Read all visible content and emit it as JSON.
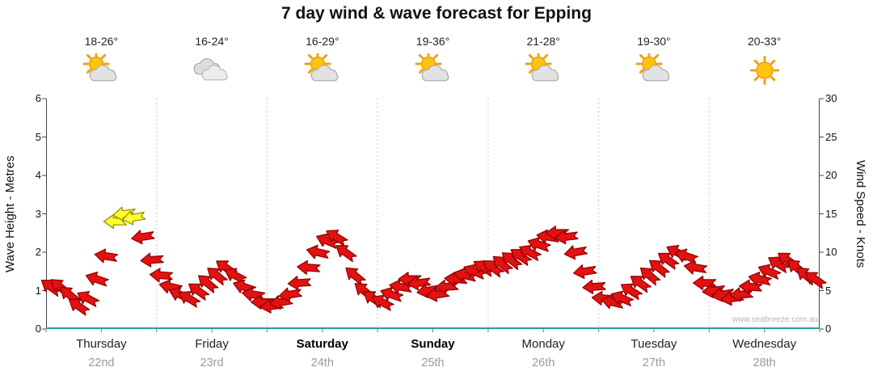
{
  "title": "7 day wind & wave forecast for Epping",
  "watermark": "www.seabreeze.com.au",
  "colors": {
    "arrow_red": "#e41111",
    "arrow_red_edge": "#8f0000",
    "arrow_yellow": "#ffff2e",
    "arrow_yellow_edge": "#8a8a00",
    "axis_teal": "#2e9a9a",
    "grid": "#cccccc",
    "axis_dark": "#444444"
  },
  "left_axis": {
    "label": "Wave Height - Metres",
    "ticks": [
      0,
      1,
      2,
      3,
      4,
      5,
      6
    ],
    "range": [
      0,
      6
    ]
  },
  "right_axis": {
    "label": "Wind Speed - Knots",
    "ticks": [
      0,
      5,
      10,
      15,
      20,
      25,
      30
    ],
    "range": [
      0,
      30
    ]
  },
  "days": [
    {
      "name": "Thursday",
      "date": "22nd",
      "temp": "18-26°",
      "icon": "sun-cloud",
      "bold": false
    },
    {
      "name": "Friday",
      "date": "23rd",
      "temp": "16-24°",
      "icon": "cloud",
      "bold": false
    },
    {
      "name": "Saturday",
      "date": "24th",
      "temp": "16-29°",
      "icon": "sun-cloud",
      "bold": true
    },
    {
      "name": "Sunday",
      "date": "25th",
      "temp": "19-36°",
      "icon": "sun-cloud",
      "bold": true
    },
    {
      "name": "Monday",
      "date": "26th",
      "temp": "21-28°",
      "icon": "sun-cloud",
      "bold": false
    },
    {
      "name": "Tuesday",
      "date": "27th",
      "temp": "19-30°",
      "icon": "sun-cloud",
      "bold": false
    },
    {
      "name": "Wednesday",
      "date": "28th",
      "temp": "20-33°",
      "icon": "sun",
      "bold": false
    }
  ],
  "chart_data": {
    "type": "wind-arrows",
    "title": "7 day wind & wave forecast for Epping",
    "x_categories": [
      "Thursday 22nd",
      "Friday 23rd",
      "Saturday 24th",
      "Sunday 25th",
      "Monday 26th",
      "Tuesday 27th",
      "Wednesday 28th"
    ],
    "points_per_day": 12,
    "interval_hours": 2,
    "left_axis_range_metres": [
      0,
      6
    ],
    "right_axis_range_knots": [
      0,
      30
    ],
    "series_unit": "knots",
    "speeds_knots": [
      [
        5.5,
        5.5,
        4.5,
        3.0,
        4.0,
        6.5,
        9.5,
        14.0,
        15.0,
        14.5,
        12.0,
        9.0
      ],
      [
        7.0,
        5.5,
        4.5,
        4.0,
        5.0,
        6.0,
        7.0,
        8.0,
        7.0,
        5.5,
        4.5,
        3.5
      ],
      [
        3.0,
        3.5,
        4.5,
        6.0,
        8.0,
        10.0,
        11.5,
        12.0,
        10.0,
        7.0,
        5.0,
        4.0
      ],
      [
        3.5,
        4.5,
        5.5,
        6.5,
        6.0,
        5.0,
        4.5,
        5.5,
        6.5,
        7.0,
        7.5,
        8.0
      ],
      [
        8.0,
        8.5,
        9.0,
        9.5,
        10.0,
        11.0,
        12.0,
        12.5,
        12.0,
        10.0,
        7.5,
        5.5
      ],
      [
        4.0,
        3.5,
        4.0,
        5.0,
        6.0,
        7.0,
        8.0,
        9.0,
        10.0,
        9.5,
        8.0,
        6.0
      ],
      [
        5.0,
        4.5,
        4.0,
        4.5,
        5.5,
        6.5,
        7.5,
        8.5,
        9.0,
        8.0,
        7.0,
        6.5
      ]
    ],
    "directions_deg": [
      [
        216,
        220,
        219,
        215,
        208,
        199,
        189,
        180,
        173,
        170,
        171,
        176
      ],
      [
        184,
        193,
        203,
        212,
        216,
        220,
        219,
        215,
        208,
        199,
        189,
        180
      ],
      [
        173,
        170,
        171,
        176,
        184,
        193,
        203,
        212,
        216,
        220,
        219,
        215
      ],
      [
        208,
        199,
        189,
        180,
        173,
        170,
        171,
        176,
        184,
        193,
        203,
        212
      ],
      [
        216,
        220,
        219,
        215,
        208,
        199,
        189,
        180,
        173,
        170,
        171,
        176
      ],
      [
        184,
        193,
        203,
        212,
        216,
        220,
        219,
        215,
        208,
        199,
        189,
        180
      ],
      [
        173,
        170,
        171,
        176,
        184,
        193,
        203,
        212,
        216,
        220,
        219,
        215
      ]
    ],
    "arrow_colors": {
      "default": "#e41111",
      "strong": "#ffff2e",
      "strong_threshold_knots": 13.5
    }
  }
}
